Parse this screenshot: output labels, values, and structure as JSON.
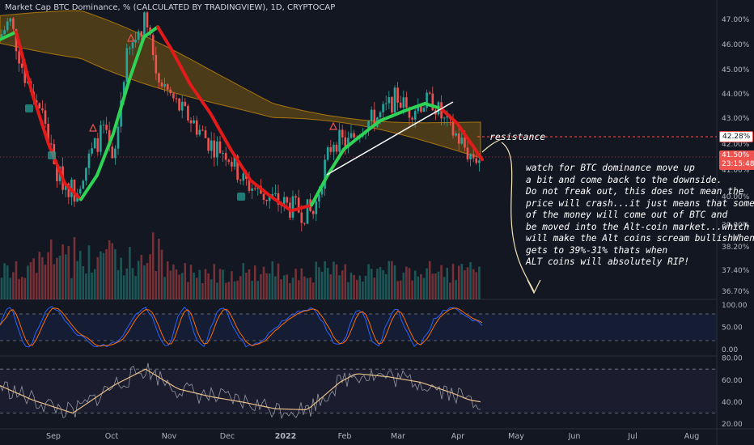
{
  "header": {
    "title": "Market Cap BTC Dominance, % (CALCULATED BY TRADINGVIEW), 1D, CRYPTOCAP"
  },
  "annotations": {
    "resistance_label": "resistance",
    "note_lines": [
      "watch for BTC dominance move up",
      "a bit and come back to the downside.",
      "Do not freak out, this does not mean the",
      "price will crash...it just means that some",
      "of the money will come out of BTC and",
      "be moved into the Alt-coin market...which",
      "will make the Alt coins scream bullishWhen i",
      "gets to 39%-31% thats when",
      "ALT coins will absolutely RIP!"
    ]
  },
  "price_tags": {
    "resistance": "42.28%",
    "current": "41.50%",
    "countdown": "23:15:48"
  },
  "colors": {
    "background": "#131722",
    "up": "#26a69a",
    "down": "#ef5350",
    "ribbon": "#f7a600",
    "signal_up": "#2ed356",
    "signal_down": "#e21a1a",
    "resistance": "#ef5350"
  },
  "chart_data": [
    {
      "type": "candlestick",
      "title": "Market Cap BTC Dominance, % (CALCULATED BY TRADINGVIEW), 1D, CRYPTOCAP",
      "y_unit": "%",
      "yticks": [
        "47.00%",
        "46.00%",
        "45.00%",
        "44.00%",
        "43.00%",
        "42.00%",
        "41.00%",
        "40.00%",
        "39.00%",
        "38.20%",
        "37.40%",
        "36.70%"
      ],
      "ytick_values": [
        47.0,
        46.0,
        45.0,
        44.0,
        43.0,
        42.0,
        41.0,
        40.0,
        39.0,
        38.2,
        37.4,
        36.7
      ],
      "xticks": [
        "Sep",
        "Oct",
        "Nov",
        "Dec",
        "2022",
        "Feb",
        "Mar",
        "Apr",
        "May",
        "Jun",
        "Jul",
        "Aug"
      ],
      "close_series": {
        "months": [
          "Aug",
          "Sep",
          "Oct",
          "Nov",
          "Dec",
          "2022",
          "Feb",
          "Mar",
          "Apr"
        ],
        "points": [
          {
            "x": "Aug",
            "y": 46.5
          },
          {
            "x": "Sep",
            "y": 40.8
          },
          {
            "x": "Sep",
            "y": 40.1
          },
          {
            "x": "Oct",
            "y": 42.0
          },
          {
            "x": "Oct",
            "y": 45.5
          },
          {
            "x": "Oct",
            "y": 47.0
          },
          {
            "x": "Nov",
            "y": 44.6
          },
          {
            "x": "Nov",
            "y": 43.0
          },
          {
            "x": "Dec",
            "y": 41.5
          },
          {
            "x": "Dec",
            "y": 40.4
          },
          {
            "x": "2022",
            "y": 39.9
          },
          {
            "x": "2022",
            "y": 39.3
          },
          {
            "x": "Feb",
            "y": 42.0
          },
          {
            "x": "Feb",
            "y": 42.6
          },
          {
            "x": "Mar",
            "y": 43.6
          },
          {
            "x": "Mar",
            "y": 43.0
          },
          {
            "x": "Apr",
            "y": 42.2
          },
          {
            "x": "Apr",
            "y": 41.5
          }
        ]
      },
      "resistance": 42.28,
      "current": 41.5
    },
    {
      "type": "line",
      "panel": "oscillator",
      "yticks": [
        "100.00",
        "50.00",
        "0.00"
      ],
      "ytick_values": [
        100,
        50,
        0
      ],
      "bands": [
        80,
        20
      ]
    },
    {
      "type": "line",
      "panel": "rsi",
      "yticks": [
        "80.00",
        "60.00",
        "40.00",
        "20.00"
      ],
      "ytick_values": [
        80,
        60,
        40,
        20
      ],
      "bands": [
        70,
        30
      ]
    }
  ]
}
